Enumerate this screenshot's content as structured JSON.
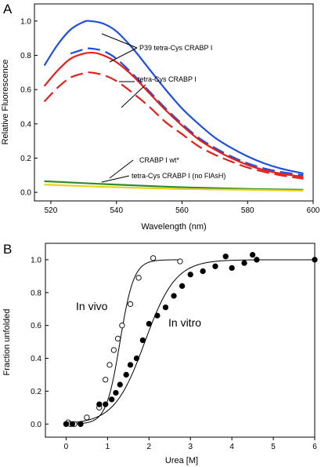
{
  "chart_data": [
    {
      "type": "line",
      "panel": "A",
      "xlabel": "Wavelength (nm)",
      "ylabel": "Relative Fluorescence",
      "xlim": [
        515,
        600
      ],
      "ylim": [
        -0.05,
        1.1
      ],
      "xticks": [
        "520",
        "540",
        "560",
        "580",
        "600"
      ],
      "yticks": [
        "0.0",
        "0.2",
        "0.4",
        "0.6",
        "0.8",
        "1.0"
      ],
      "series": [
        {
          "color": "#1f4fe0",
          "dash": false,
          "x": [
            518,
            522,
            526,
            530,
            532,
            536,
            540,
            545,
            550,
            555,
            560,
            565,
            570,
            575,
            580,
            585,
            590,
            597
          ],
          "y": [
            0.74,
            0.86,
            0.95,
            0.995,
            1.0,
            0.985,
            0.94,
            0.84,
            0.72,
            0.6,
            0.49,
            0.4,
            0.32,
            0.26,
            0.21,
            0.17,
            0.14,
            0.11
          ]
        },
        {
          "color": "#1f4fe0",
          "dash": true,
          "x": [
            526,
            530,
            532,
            536,
            540,
            545,
            550,
            555,
            560,
            565,
            570,
            575,
            580,
            585,
            590,
            597
          ],
          "y": [
            0.81,
            0.835,
            0.84,
            0.825,
            0.78,
            0.69,
            0.59,
            0.49,
            0.4,
            0.32,
            0.26,
            0.21,
            0.17,
            0.14,
            0.12,
            0.1
          ]
        },
        {
          "color": "#e5201c",
          "dash": false,
          "x": [
            518,
            522,
            526,
            530,
            533,
            536,
            540,
            545,
            550,
            555,
            560,
            565,
            570,
            575,
            580,
            585,
            590,
            597
          ],
          "y": [
            0.62,
            0.71,
            0.78,
            0.81,
            0.815,
            0.8,
            0.76,
            0.68,
            0.58,
            0.48,
            0.39,
            0.31,
            0.25,
            0.2,
            0.16,
            0.13,
            0.11,
            0.09
          ]
        },
        {
          "color": "#e5201c",
          "dash": true,
          "x": [
            518,
            522,
            526,
            530,
            532,
            536,
            540,
            545,
            550,
            555,
            560,
            565,
            570,
            575,
            580,
            585,
            590,
            597
          ],
          "y": [
            0.53,
            0.61,
            0.67,
            0.695,
            0.7,
            0.685,
            0.65,
            0.58,
            0.5,
            0.41,
            0.34,
            0.27,
            0.22,
            0.18,
            0.145,
            0.12,
            0.1,
            0.08
          ]
        },
        {
          "color": "#2e8b2e",
          "dash": false,
          "x": [
            518,
            540,
            560,
            580,
            597
          ],
          "y": [
            0.065,
            0.045,
            0.03,
            0.02,
            0.015
          ]
        },
        {
          "color": "#e8d21a",
          "dash": false,
          "x": [
            518,
            540,
            560,
            580,
            597
          ],
          "y": [
            0.045,
            0.03,
            0.02,
            0.015,
            0.01
          ]
        }
      ],
      "annotations": [
        "P39 tetra-Cys CRABP I",
        "tetra-Cys CRABP I",
        "CRABP I wt*",
        "tetra-Cys CRABP I (no FlAsH)"
      ]
    },
    {
      "type": "scatter",
      "panel": "B",
      "xlabel": "Urea [M]",
      "ylabel": "Fraction unfolded",
      "xlim": [
        -0.5,
        6.0
      ],
      "ylim": [
        -0.08,
        1.1
      ],
      "xticks": [
        "0",
        "1",
        "2",
        "3",
        "4",
        "5",
        "6"
      ],
      "yticks": [
        "0.0",
        "0.2",
        "0.4",
        "0.6",
        "0.8",
        "1.0"
      ],
      "series": [
        {
          "marker": "open",
          "x": [
            0.0,
            0.05,
            0.1,
            0.2,
            0.35,
            0.5,
            0.8,
            0.95,
            1.05,
            1.15,
            1.25,
            1.35,
            1.55,
            1.75,
            2.1,
            2.75
          ],
          "y": [
            0.0,
            0.01,
            0.0,
            0.0,
            0.0,
            0.04,
            0.1,
            0.27,
            0.36,
            0.45,
            0.52,
            0.6,
            0.73,
            0.89,
            1.01,
            0.99
          ]
        },
        {
          "marker": "filled",
          "x": [
            0.0,
            0.15,
            0.35,
            0.8,
            0.95,
            1.1,
            1.2,
            1.3,
            1.45,
            1.55,
            1.7,
            1.85,
            2.0,
            2.2,
            2.4,
            2.6,
            2.8,
            3.0,
            3.3,
            3.6,
            3.85,
            4.0,
            4.3,
            4.5,
            4.6,
            6.0
          ],
          "y": [
            0.0,
            0.0,
            0.0,
            0.12,
            0.12,
            0.15,
            0.19,
            0.24,
            0.3,
            0.36,
            0.4,
            0.51,
            0.61,
            0.66,
            0.71,
            0.78,
            0.84,
            0.91,
            0.93,
            0.96,
            1.02,
            0.95,
            0.98,
            1.03,
            1.0,
            1.0
          ]
        }
      ],
      "fits": [
        {
          "midpoint": 1.3,
          "slope": 6.0
        },
        {
          "midpoint": 1.9,
          "slope": 2.7
        }
      ],
      "labels": [
        "In vivo",
        "In vitro"
      ]
    }
  ],
  "panel_letters": [
    "A",
    "B"
  ]
}
